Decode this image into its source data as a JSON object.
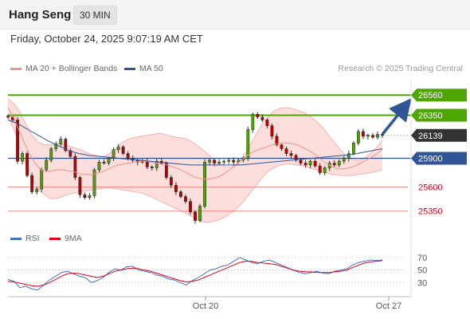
{
  "header": {
    "title": "Hang Seng",
    "interval": "30 MIN"
  },
  "date_label": "Friday, October 24, 2025 9:07:19 AM CET",
  "legend": {
    "main": [
      {
        "label": "MA 20 + Bollinger Bands",
        "color": "#f4908a"
      },
      {
        "label": "MA 50",
        "color": "#2f5597"
      }
    ],
    "rsi": [
      {
        "label": "RSI",
        "color": "#4472c4"
      },
      {
        "label": "9MA",
        "color": "#e0001b"
      }
    ]
  },
  "credit": "Research © 2025 Trading Central",
  "chart_data": {
    "type": "candlestick",
    "y_range": [
      25180,
      26720
    ],
    "levels": [
      {
        "label": "26560",
        "value": 26560,
        "style": "resistance-green"
      },
      {
        "label": "26350",
        "value": 26350,
        "style": "resistance-green"
      },
      {
        "label": "26139",
        "value": 26139,
        "style": "last-price"
      },
      {
        "label": "25900",
        "value": 25900,
        "style": "pivot-blue"
      },
      {
        "label": "25600",
        "value": 25600,
        "style": "support-red"
      },
      {
        "label": "25350",
        "value": 25350,
        "style": "support-red"
      }
    ],
    "x_ticks": [
      "Oct 20",
      "Oct 27"
    ],
    "closes": [
      26330,
      26300,
      25870,
      25950,
      25720,
      25550,
      25580,
      25780,
      25880,
      26000,
      26050,
      26100,
      25980,
      25920,
      25700,
      25520,
      25490,
      25510,
      25780,
      25860,
      25850,
      25900,
      25990,
      26020,
      25950,
      25900,
      25880,
      25860,
      25870,
      25810,
      25800,
      25870,
      25850,
      25700,
      25620,
      25550,
      25500,
      25450,
      25340,
      25250,
      25400,
      25860,
      25880,
      25850,
      25860,
      25870,
      25880,
      25860,
      25880,
      25900,
      26200,
      26360,
      26330,
      26300,
      26240,
      26130,
      26040,
      26000,
      25950,
      25930,
      25880,
      25850,
      25830,
      25870,
      25820,
      25750,
      25800,
      25850,
      25830,
      25870,
      25900,
      25950,
      26060,
      26180,
      26130,
      26140,
      26120,
      26150,
      26139
    ],
    "ma20": [
      26430,
      26330,
      26190,
      26060,
      25940,
      25840,
      25780,
      25760,
      25770,
      25780,
      25780,
      25770,
      25760,
      25740,
      25730,
      25730,
      25740,
      25760,
      25780,
      25810,
      25830,
      25840,
      25850,
      25860,
      25870,
      25870,
      25860,
      25850,
      25840,
      25830,
      25810,
      25790,
      25760,
      25730,
      25700,
      25690,
      25680,
      25690,
      25700,
      25730,
      25770,
      25810,
      25860,
      25910,
      25950,
      25980,
      26000,
      26020,
      26040,
      26050,
      26060,
      26060,
      26050,
      26030,
      26000,
      25970,
      25930,
      25880,
      25840,
      25810,
      25790,
      25790,
      25800,
      25820,
      25850,
      25880,
      25910,
      25950,
      25990
    ],
    "bb_upper": [
      26520,
      26470,
      26380,
      26250,
      26140,
      26070,
      26040,
      26040,
      26050,
      26050,
      26030,
      26010,
      25990,
      25960,
      25940,
      25920,
      25920,
      25960,
      26010,
      26070,
      26100,
      26120,
      26130,
      26140,
      26150,
      26160,
      26150,
      26130,
      26120,
      26110,
      26090,
      26050,
      26000,
      25950,
      25890,
      25850,
      25810,
      25810,
      25850,
      25920,
      26030,
      26140,
      26250,
      26330,
      26390,
      26420,
      26430,
      26420,
      26400,
      26380,
      26340,
      26290,
      26230,
      26150,
      26070,
      25990,
      25930,
      25890,
      25880,
      25900,
      25950,
      26010,
      26090
    ],
    "bb_lower": [
      26340,
      26200,
      26010,
      25830,
      25690,
      25580,
      25520,
      25480,
      25480,
      25500,
      25520,
      25540,
      25550,
      25560,
      25570,
      25580,
      25590,
      25590,
      25580,
      25570,
      25560,
      25550,
      25540,
      25520,
      25490,
      25460,
      25430,
      25400,
      25370,
      25340,
      25310,
      25270,
      25240,
      25230,
      25240,
      25260,
      25290,
      25330,
      25380,
      25450,
      25530,
      25610,
      25690,
      25760,
      25800,
      25830,
      25840,
      25840,
      25830,
      25820,
      25800,
      25780,
      25760,
      25740,
      25730,
      25720,
      25720,
      25720,
      25730,
      25740,
      25750,
      25760,
      25780
    ],
    "ma50": [
      26300,
      26260,
      26200,
      26140,
      26080,
      26030,
      25980,
      25950,
      25930,
      25920,
      25910,
      25900,
      25890,
      25880,
      25870,
      25860,
      25850,
      25840,
      25830,
      25830,
      25830,
      25830,
      25830,
      25830,
      25840,
      25850,
      25860,
      25870,
      25880,
      25890,
      25900,
      25910,
      25920,
      25930,
      25940,
      25960,
      25980,
      26000
    ],
    "projection": {
      "from": 26150,
      "to": 26460
    },
    "rsi": {
      "range": [
        10,
        80
      ],
      "levels": [
        70,
        50,
        30
      ],
      "values": [
        35,
        32,
        22,
        24,
        20,
        18,
        26,
        34,
        40,
        46,
        48,
        44,
        40,
        38,
        30,
        33,
        38,
        46,
        52,
        50,
        55,
        56,
        50,
        48,
        46,
        42,
        40,
        36,
        34,
        30,
        26,
        33,
        38,
        44,
        50,
        52,
        56,
        58,
        64,
        70,
        66,
        62,
        60,
        64,
        66,
        62,
        58,
        54,
        50,
        46,
        44,
        46,
        48,
        45,
        44,
        48,
        50,
        52,
        58,
        62,
        64,
        66,
        65,
        66
      ],
      "ma9": [
        32,
        31,
        29,
        27,
        25,
        24,
        26,
        30,
        35,
        40,
        44,
        45,
        44,
        42,
        40,
        38,
        40,
        44,
        48,
        50,
        52,
        53,
        52,
        50,
        48,
        45,
        42,
        39,
        36,
        33,
        31,
        32,
        34,
        38,
        42,
        46,
        50,
        54,
        58,
        62,
        64,
        64,
        62,
        61,
        60,
        59,
        56,
        53,
        50,
        48,
        47,
        47,
        46,
        46,
        46,
        47,
        48,
        50,
        54,
        58,
        61,
        63,
        64,
        65
      ]
    }
  }
}
